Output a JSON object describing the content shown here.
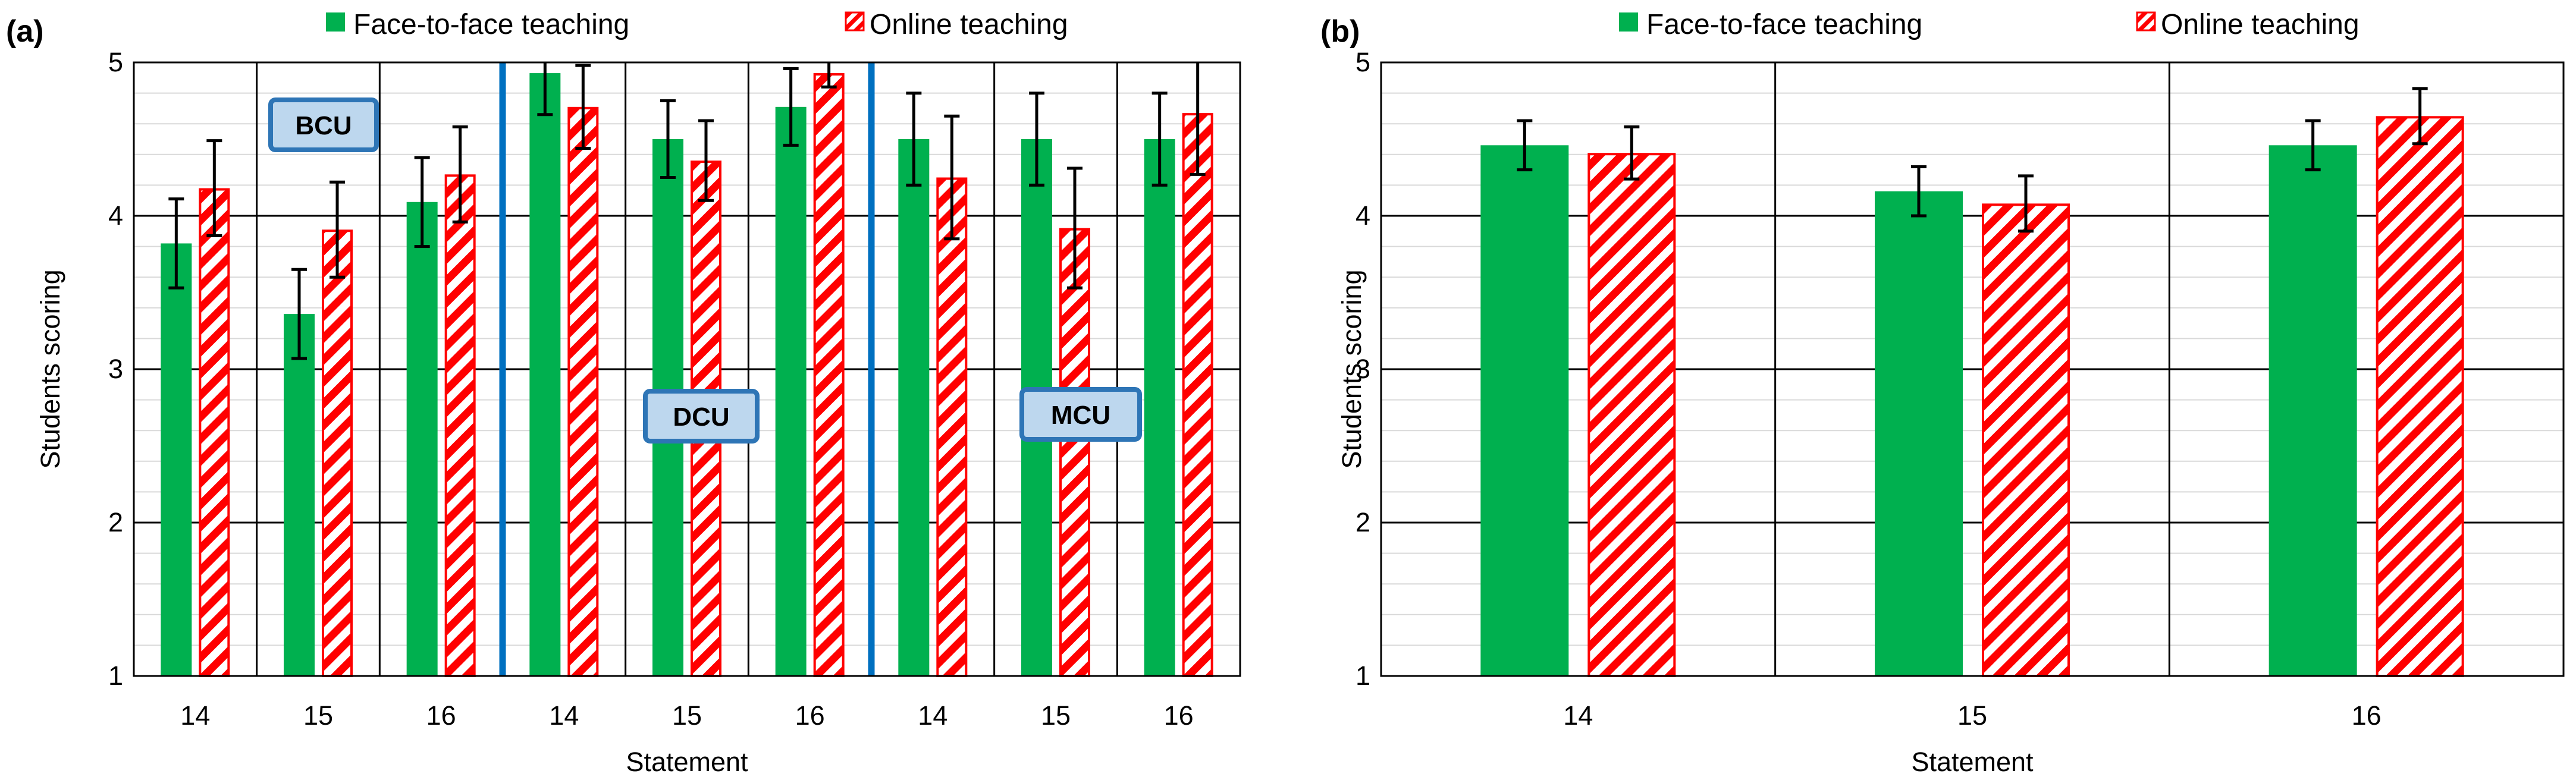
{
  "colors": {
    "face": "#00b04f",
    "online": "#ff0000",
    "divider": "#0070c0",
    "region_fill": "#bdd7ee",
    "region_border": "#2e75b6",
    "grid_minor": "#d9d9d9",
    "grid_major": "#000000"
  },
  "chart_data": [
    {
      "panel_label": "(a)",
      "type": "bar",
      "xlabel": "Statement",
      "ylabel": "Students scoring",
      "ylim": [
        1,
        5
      ],
      "yticks": [
        "1",
        "2",
        "3",
        "4",
        "5"
      ],
      "categories": [
        "14",
        "15",
        "16",
        "14",
        "15",
        "16",
        "14",
        "15",
        "16"
      ],
      "groups": [
        {
          "label": "BCU",
          "categories": [
            0,
            1,
            2
          ]
        },
        {
          "label": "DCU",
          "categories": [
            3,
            4,
            5
          ]
        },
        {
          "label": "MCU",
          "categories": [
            6,
            7,
            8
          ]
        }
      ],
      "series": [
        {
          "name": "Face-to-face teaching",
          "pattern": "solid",
          "values": [
            3.82,
            3.36,
            4.09,
            4.93,
            4.5,
            4.71,
            4.5,
            4.5,
            4.5
          ],
          "errors": [
            0.29,
            0.29,
            0.29,
            0.27,
            0.25,
            0.25,
            0.3,
            0.3,
            0.3
          ]
        },
        {
          "name": "Online teaching",
          "pattern": "hatched",
          "values": [
            4.18,
            3.91,
            4.27,
            4.71,
            4.36,
            4.93,
            4.25,
            3.92,
            4.67
          ],
          "errors": [
            0.31,
            0.31,
            0.31,
            0.27,
            0.26,
            0.09,
            0.4,
            0.39,
            0.4
          ]
        }
      ]
    },
    {
      "panel_label": "(b)",
      "type": "bar",
      "xlabel": "Statement",
      "ylabel": "Students scoring",
      "ylim": [
        1,
        5
      ],
      "yticks": [
        "1",
        "2",
        "3",
        "4",
        "5"
      ],
      "categories": [
        "14",
        "15",
        "16"
      ],
      "series": [
        {
          "name": "Face-to-face teaching",
          "pattern": "solid",
          "values": [
            4.46,
            4.16,
            4.46
          ],
          "errors": [
            0.16,
            0.16,
            0.16
          ]
        },
        {
          "name": "Online teaching",
          "pattern": "hatched",
          "values": [
            4.41,
            4.08,
            4.65
          ],
          "errors": [
            0.17,
            0.18,
            0.18
          ]
        }
      ]
    }
  ]
}
